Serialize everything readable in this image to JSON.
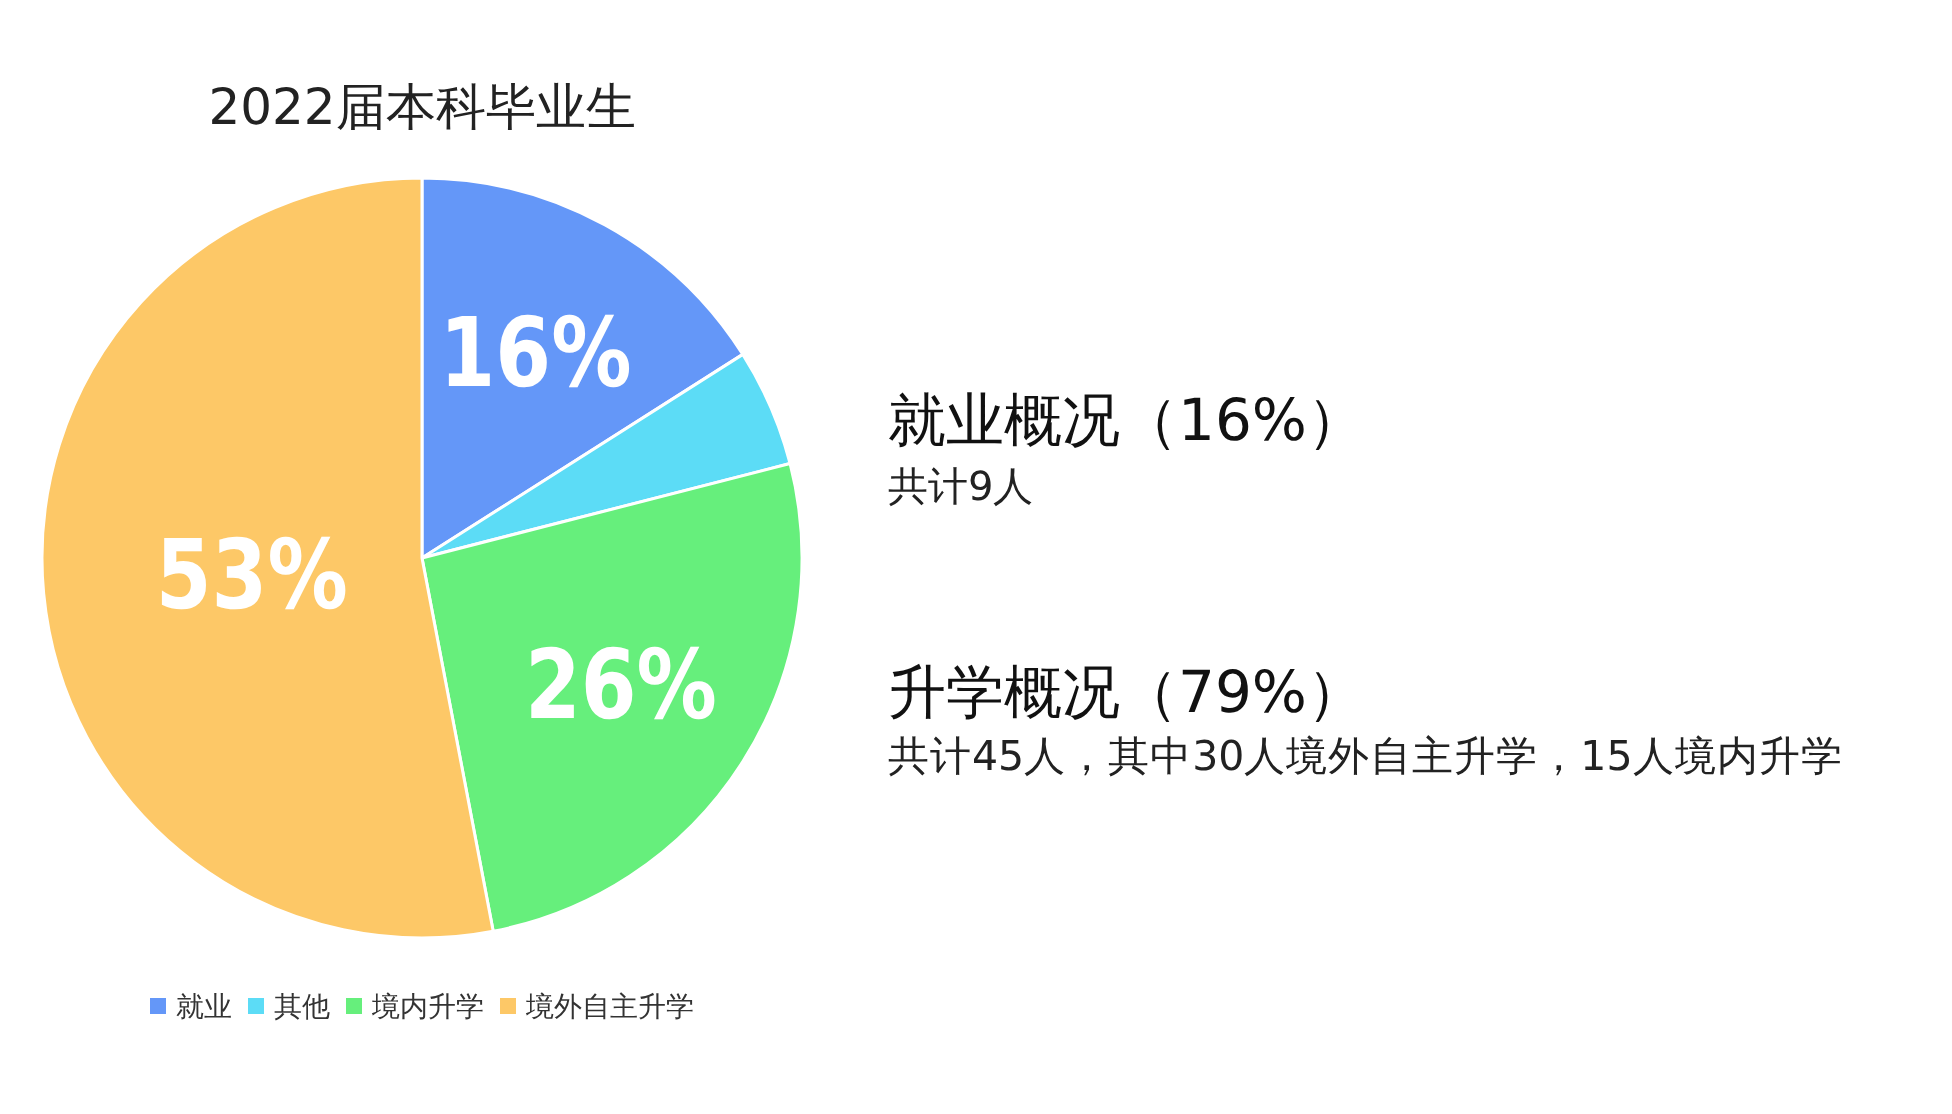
{
  "chart_data": {
    "type": "pie",
    "title": "2022届本科毕业生",
    "categories": [
      "就业",
      "其他",
      "境内升学",
      "境外自主升学"
    ],
    "values": [
      16,
      5,
      26,
      53
    ],
    "colors": [
      "#6497f8",
      "#5cdcf6",
      "#66ef7c",
      "#fdc867"
    ],
    "value_labels": [
      "16%",
      null,
      "26%",
      "53%"
    ],
    "legend": "bottom",
    "annotations": [
      "就业概况（16%）",
      "共计9人",
      "升学概况（79%）",
      "共计45人，其中30人境外自主升学，15人境内升学"
    ]
  }
}
